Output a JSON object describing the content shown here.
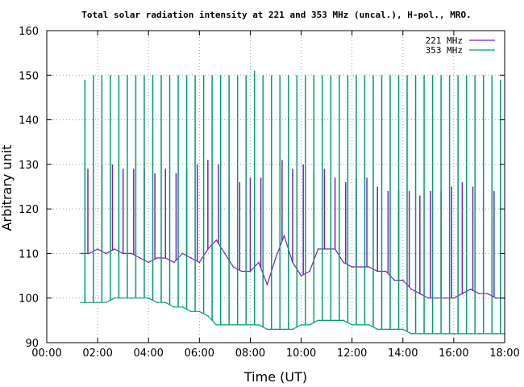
{
  "chart_data": {
    "type": "line",
    "title": "Total solar radiation intensity at 221 and 353 MHz (uncal.), H-pol., MRO.",
    "xlabel": "Time (UT)",
    "ylabel": "Arbitrary unit",
    "xlim": [
      "00:00",
      "18:00"
    ],
    "ylim": [
      90,
      160
    ],
    "x_ticks": [
      "00:00",
      "02:00",
      "04:00",
      "06:00",
      "08:00",
      "10:00",
      "12:00",
      "14:00",
      "16:00",
      "18:00"
    ],
    "y_ticks": [
      "90",
      "100",
      "110",
      "120",
      "130",
      "140",
      "150",
      "160"
    ],
    "grid": true,
    "legend_position": "top-right",
    "series": [
      {
        "name": "221 MHz",
        "color": "#7b1fc4",
        "x": [
          "01:20",
          "01:40",
          "02:00",
          "02:20",
          "02:40",
          "03:00",
          "03:20",
          "03:40",
          "04:00",
          "04:20",
          "04:40",
          "05:00",
          "05:20",
          "05:40",
          "06:00",
          "06:20",
          "06:40",
          "07:00",
          "07:20",
          "07:40",
          "08:00",
          "08:20",
          "08:40",
          "09:00",
          "09:20",
          "09:40",
          "10:00",
          "10:20",
          "10:40",
          "11:00",
          "11:20",
          "11:40",
          "12:00",
          "12:20",
          "12:40",
          "13:00",
          "13:20",
          "13:40",
          "14:00",
          "14:20",
          "14:40",
          "15:00",
          "15:20",
          "15:40",
          "16:00",
          "16:20",
          "16:40",
          "17:00",
          "17:20",
          "17:40",
          "18:00"
        ],
        "y": [
          110,
          110,
          111,
          110,
          111,
          110,
          110,
          109,
          108,
          109,
          109,
          108,
          110,
          109,
          108,
          111,
          113,
          110,
          107,
          106,
          106,
          108,
          103,
          109,
          114,
          108,
          105,
          106,
          111,
          111,
          111,
          108,
          107,
          107,
          107,
          106,
          106,
          104,
          104,
          102,
          101,
          100,
          100,
          100,
          100,
          101,
          102,
          101,
          101,
          100,
          100
        ],
        "calibration_spikes": {
          "x": [
            "01:37",
            "02:10",
            "02:35",
            "03:00",
            "03:25",
            "03:50",
            "04:15",
            "04:40",
            "05:05",
            "05:30",
            "05:55",
            "06:20",
            "06:45",
            "07:10",
            "07:35",
            "08:00",
            "08:25",
            "08:50",
            "09:15",
            "09:40",
            "10:05",
            "10:30",
            "10:55",
            "11:20",
            "11:45",
            "12:10",
            "12:35",
            "13:00",
            "13:25",
            "13:50",
            "14:15",
            "14:40",
            "15:05",
            "15:30",
            "15:55",
            "16:20",
            "16:45",
            "17:10",
            "17:35"
          ],
          "y": [
            129,
            130,
            130,
            129,
            129,
            129,
            128,
            129,
            128,
            129,
            130,
            131,
            130,
            127,
            126,
            127,
            127,
            128,
            131,
            129,
            130,
            128,
            129,
            127,
            126,
            127,
            127,
            125,
            124,
            124,
            124,
            123,
            124,
            124,
            125,
            126,
            125,
            125,
            124
          ]
        }
      },
      {
        "name": "353 MHz",
        "color": "#009e73",
        "x": [
          "01:20",
          "01:40",
          "02:00",
          "02:20",
          "02:40",
          "03:00",
          "03:20",
          "03:40",
          "04:00",
          "04:20",
          "04:40",
          "05:00",
          "05:20",
          "05:40",
          "06:00",
          "06:20",
          "06:40",
          "07:00",
          "07:20",
          "07:40",
          "08:00",
          "08:20",
          "08:40",
          "09:00",
          "09:20",
          "09:40",
          "10:00",
          "10:20",
          "10:40",
          "11:00",
          "11:20",
          "11:40",
          "12:00",
          "12:20",
          "12:40",
          "13:00",
          "13:20",
          "13:40",
          "14:00",
          "14:20",
          "14:40",
          "15:00",
          "15:20",
          "15:40",
          "16:00",
          "16:20",
          "16:40",
          "17:00",
          "17:20",
          "17:40",
          "18:00"
        ],
        "y": [
          99,
          99,
          99,
          99,
          100,
          100,
          100,
          100,
          100,
          99,
          99,
          98,
          98,
          97,
          97,
          96,
          94,
          94,
          94,
          94,
          94,
          94,
          93,
          93,
          93,
          93,
          94,
          94,
          95,
          95,
          95,
          95,
          94,
          94,
          94,
          93,
          93,
          93,
          93,
          92,
          92,
          92,
          92,
          92,
          92,
          92,
          92,
          92,
          92,
          92,
          92
        ],
        "calibration_spikes": {
          "x": [
            "01:30",
            "01:50",
            "02:10",
            "02:30",
            "02:50",
            "03:10",
            "03:30",
            "03:50",
            "04:10",
            "04:30",
            "04:50",
            "05:10",
            "05:30",
            "05:50",
            "06:10",
            "06:30",
            "06:50",
            "07:10",
            "07:30",
            "07:50",
            "08:10",
            "08:30",
            "08:50",
            "09:10",
            "09:30",
            "09:50",
            "10:10",
            "10:30",
            "10:50",
            "11:10",
            "11:30",
            "11:50",
            "12:10",
            "12:30",
            "12:50",
            "13:10",
            "13:30",
            "13:50",
            "14:10",
            "14:30",
            "14:50",
            "15:10",
            "15:30",
            "15:50",
            "16:10",
            "16:30",
            "16:50",
            "17:10",
            "17:30",
            "17:50"
          ],
          "y": [
            149,
            150,
            150,
            150,
            150,
            150,
            150,
            150,
            150,
            150,
            150,
            150,
            150,
            150,
            150,
            150,
            150,
            150,
            150,
            150,
            151,
            150,
            150,
            150,
            150,
            150,
            150,
            150,
            150,
            150,
            150,
            150,
            150,
            150,
            150,
            150,
            150,
            150,
            150,
            150,
            150,
            150,
            150,
            150,
            150,
            150,
            150,
            150,
            150,
            149
          ]
        }
      }
    ]
  }
}
